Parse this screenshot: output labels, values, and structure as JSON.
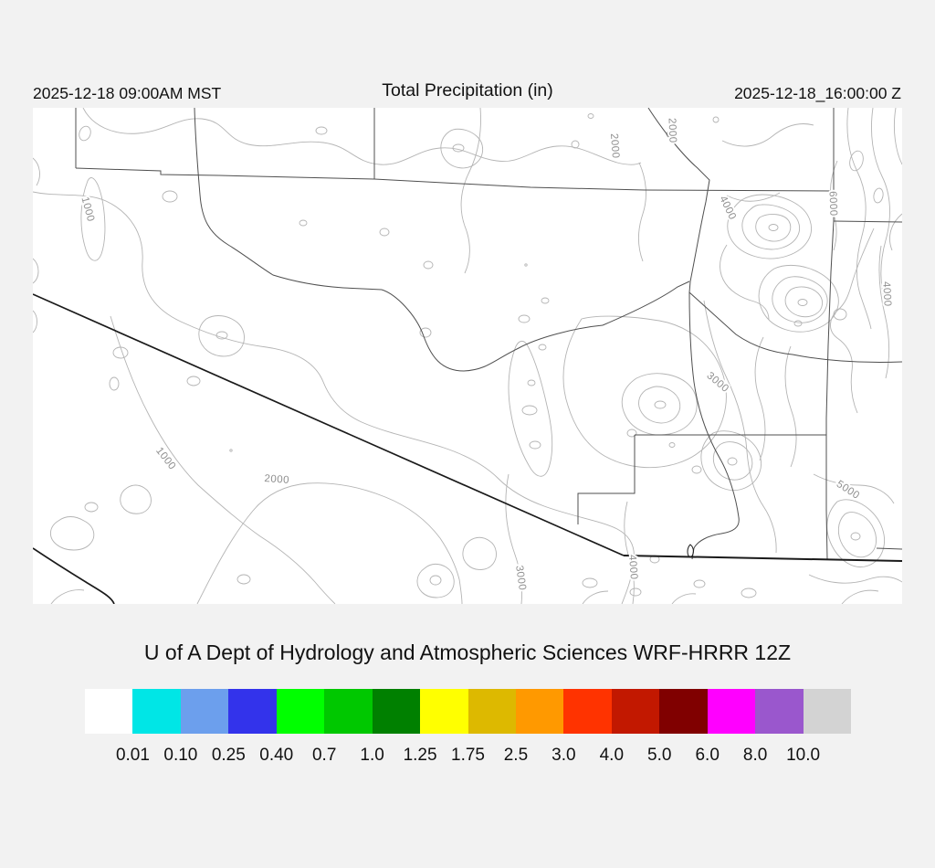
{
  "header": {
    "left_datetime": "2025-12-18 09:00AM MST",
    "title": "Total Precipitation (in)",
    "right_datetime": "2025-12-18_16:00:00 Z"
  },
  "credit": "U of A Dept of Hydrology and Atmospheric Sciences WRF-HRRR 12Z",
  "map": {
    "contour_labels": [
      "1000",
      "1000",
      "2000",
      "2000",
      "2000",
      "3000",
      "3000",
      "4000",
      "4000",
      "4000",
      "5000",
      "6000"
    ],
    "contour_interval_units": "ft"
  },
  "colorbar": {
    "tick_labels": [
      "0.01",
      "0.10",
      "0.25",
      "0.40",
      "0.7",
      "1.0",
      "1.25",
      "1.75",
      "2.5",
      "3.0",
      "4.0",
      "5.0",
      "6.0",
      "8.0",
      "10.0"
    ],
    "segment_colors": [
      "#ffffff",
      "#00e6e6",
      "#6c9fed",
      "#3333eb",
      "#00ff00",
      "#00c800",
      "#008000",
      "#ffff00",
      "#ddb900",
      "#ff9900",
      "#ff3300",
      "#c21800",
      "#800000",
      "#ff00ff",
      "#9a57cd",
      "#d3d3d3"
    ]
  },
  "colors": {
    "page_background": "#f2f2f2",
    "map_background": "#ffffff",
    "contour_line": "#b4b4b4",
    "county_line": "#4f4f4f",
    "state_border": "#1a1a1a"
  }
}
